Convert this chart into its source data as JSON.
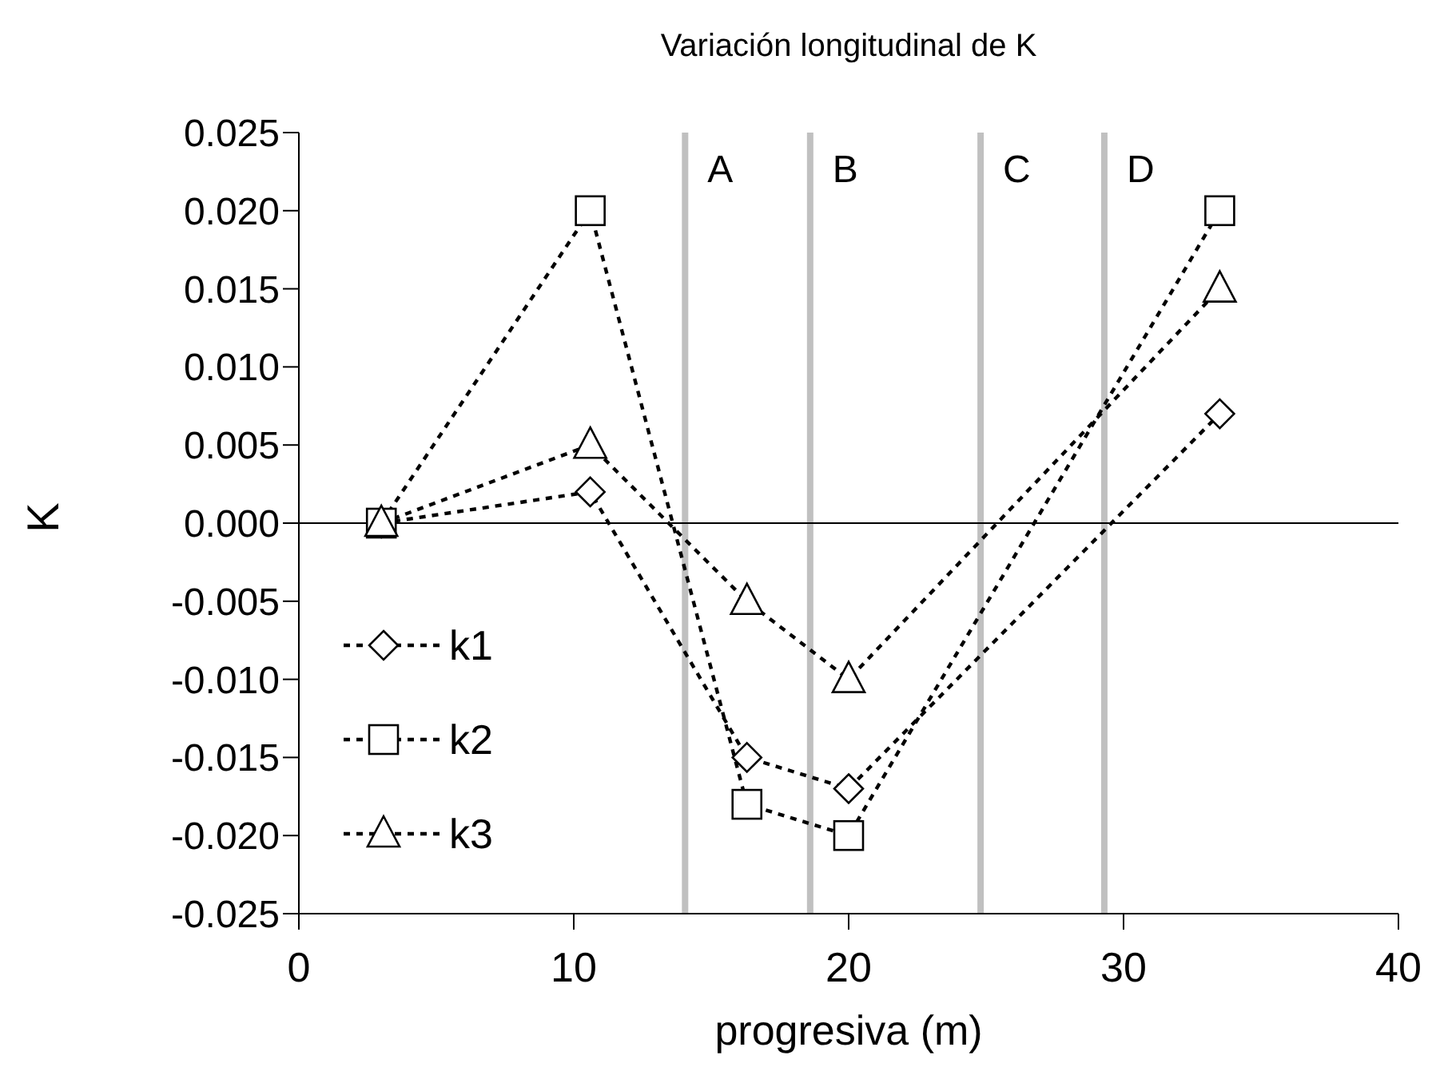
{
  "chart_data": {
    "type": "line",
    "title": "Variación longitudinal de K",
    "xlabel": "progresiva (m)",
    "ylabel": "K",
    "x": [
      3,
      10.6,
      16.3,
      20,
      33.5
    ],
    "series": [
      {
        "name": "k1",
        "color": "#000000",
        "marker": "diamond",
        "values": [
          0,
          0.002,
          -0.015,
          -0.017,
          0.007
        ]
      },
      {
        "name": "k2",
        "color": "#000000",
        "marker": "square",
        "values": [
          0,
          0.02,
          -0.018,
          -0.02,
          0.02
        ]
      },
      {
        "name": "k3",
        "color": "#000000",
        "marker": "triangle",
        "values": [
          0,
          0.005,
          -0.005,
          -0.01,
          0.015
        ]
      }
    ],
    "line_style": "dashed",
    "xlim": [
      0,
      40
    ],
    "xticks": [
      0,
      10,
      20,
      30,
      40
    ],
    "ylim": [
      -0.025,
      0.025
    ],
    "yticks": [
      {
        "value": -0.025,
        "label": "-0.025"
      },
      {
        "value": -0.02,
        "label": "-0.020"
      },
      {
        "value": -0.015,
        "label": "-0.015"
      },
      {
        "value": -0.01,
        "label": "-0.010"
      },
      {
        "value": -0.005,
        "label": "-0.005"
      },
      {
        "value": 0,
        "label": "0.000"
      },
      {
        "value": 0.005,
        "label": "0.005"
      },
      {
        "value": 0.01,
        "label": "0.010"
      },
      {
        "value": 0.015,
        "label": "0.015"
      },
      {
        "value": 0.02,
        "label": "0.020"
      },
      {
        "value": 0.025,
        "label": "0.025"
      }
    ],
    "ref_lines": [
      {
        "axis": "x",
        "value": 14.05,
        "label": "A",
        "color": "#c0c0c0"
      },
      {
        "axis": "x",
        "value": 18.6,
        "label": "B",
        "color": "#c0c0c0"
      },
      {
        "axis": "x",
        "value": 24.8,
        "label": "C",
        "color": "#c0c0c0"
      },
      {
        "axis": "x",
        "value": 29.3,
        "label": "D",
        "color": "#c0c0c0"
      },
      {
        "axis": "y",
        "value": 0,
        "label": null,
        "color": "#000000"
      }
    ],
    "legend": "bottom left",
    "grid": false
  }
}
